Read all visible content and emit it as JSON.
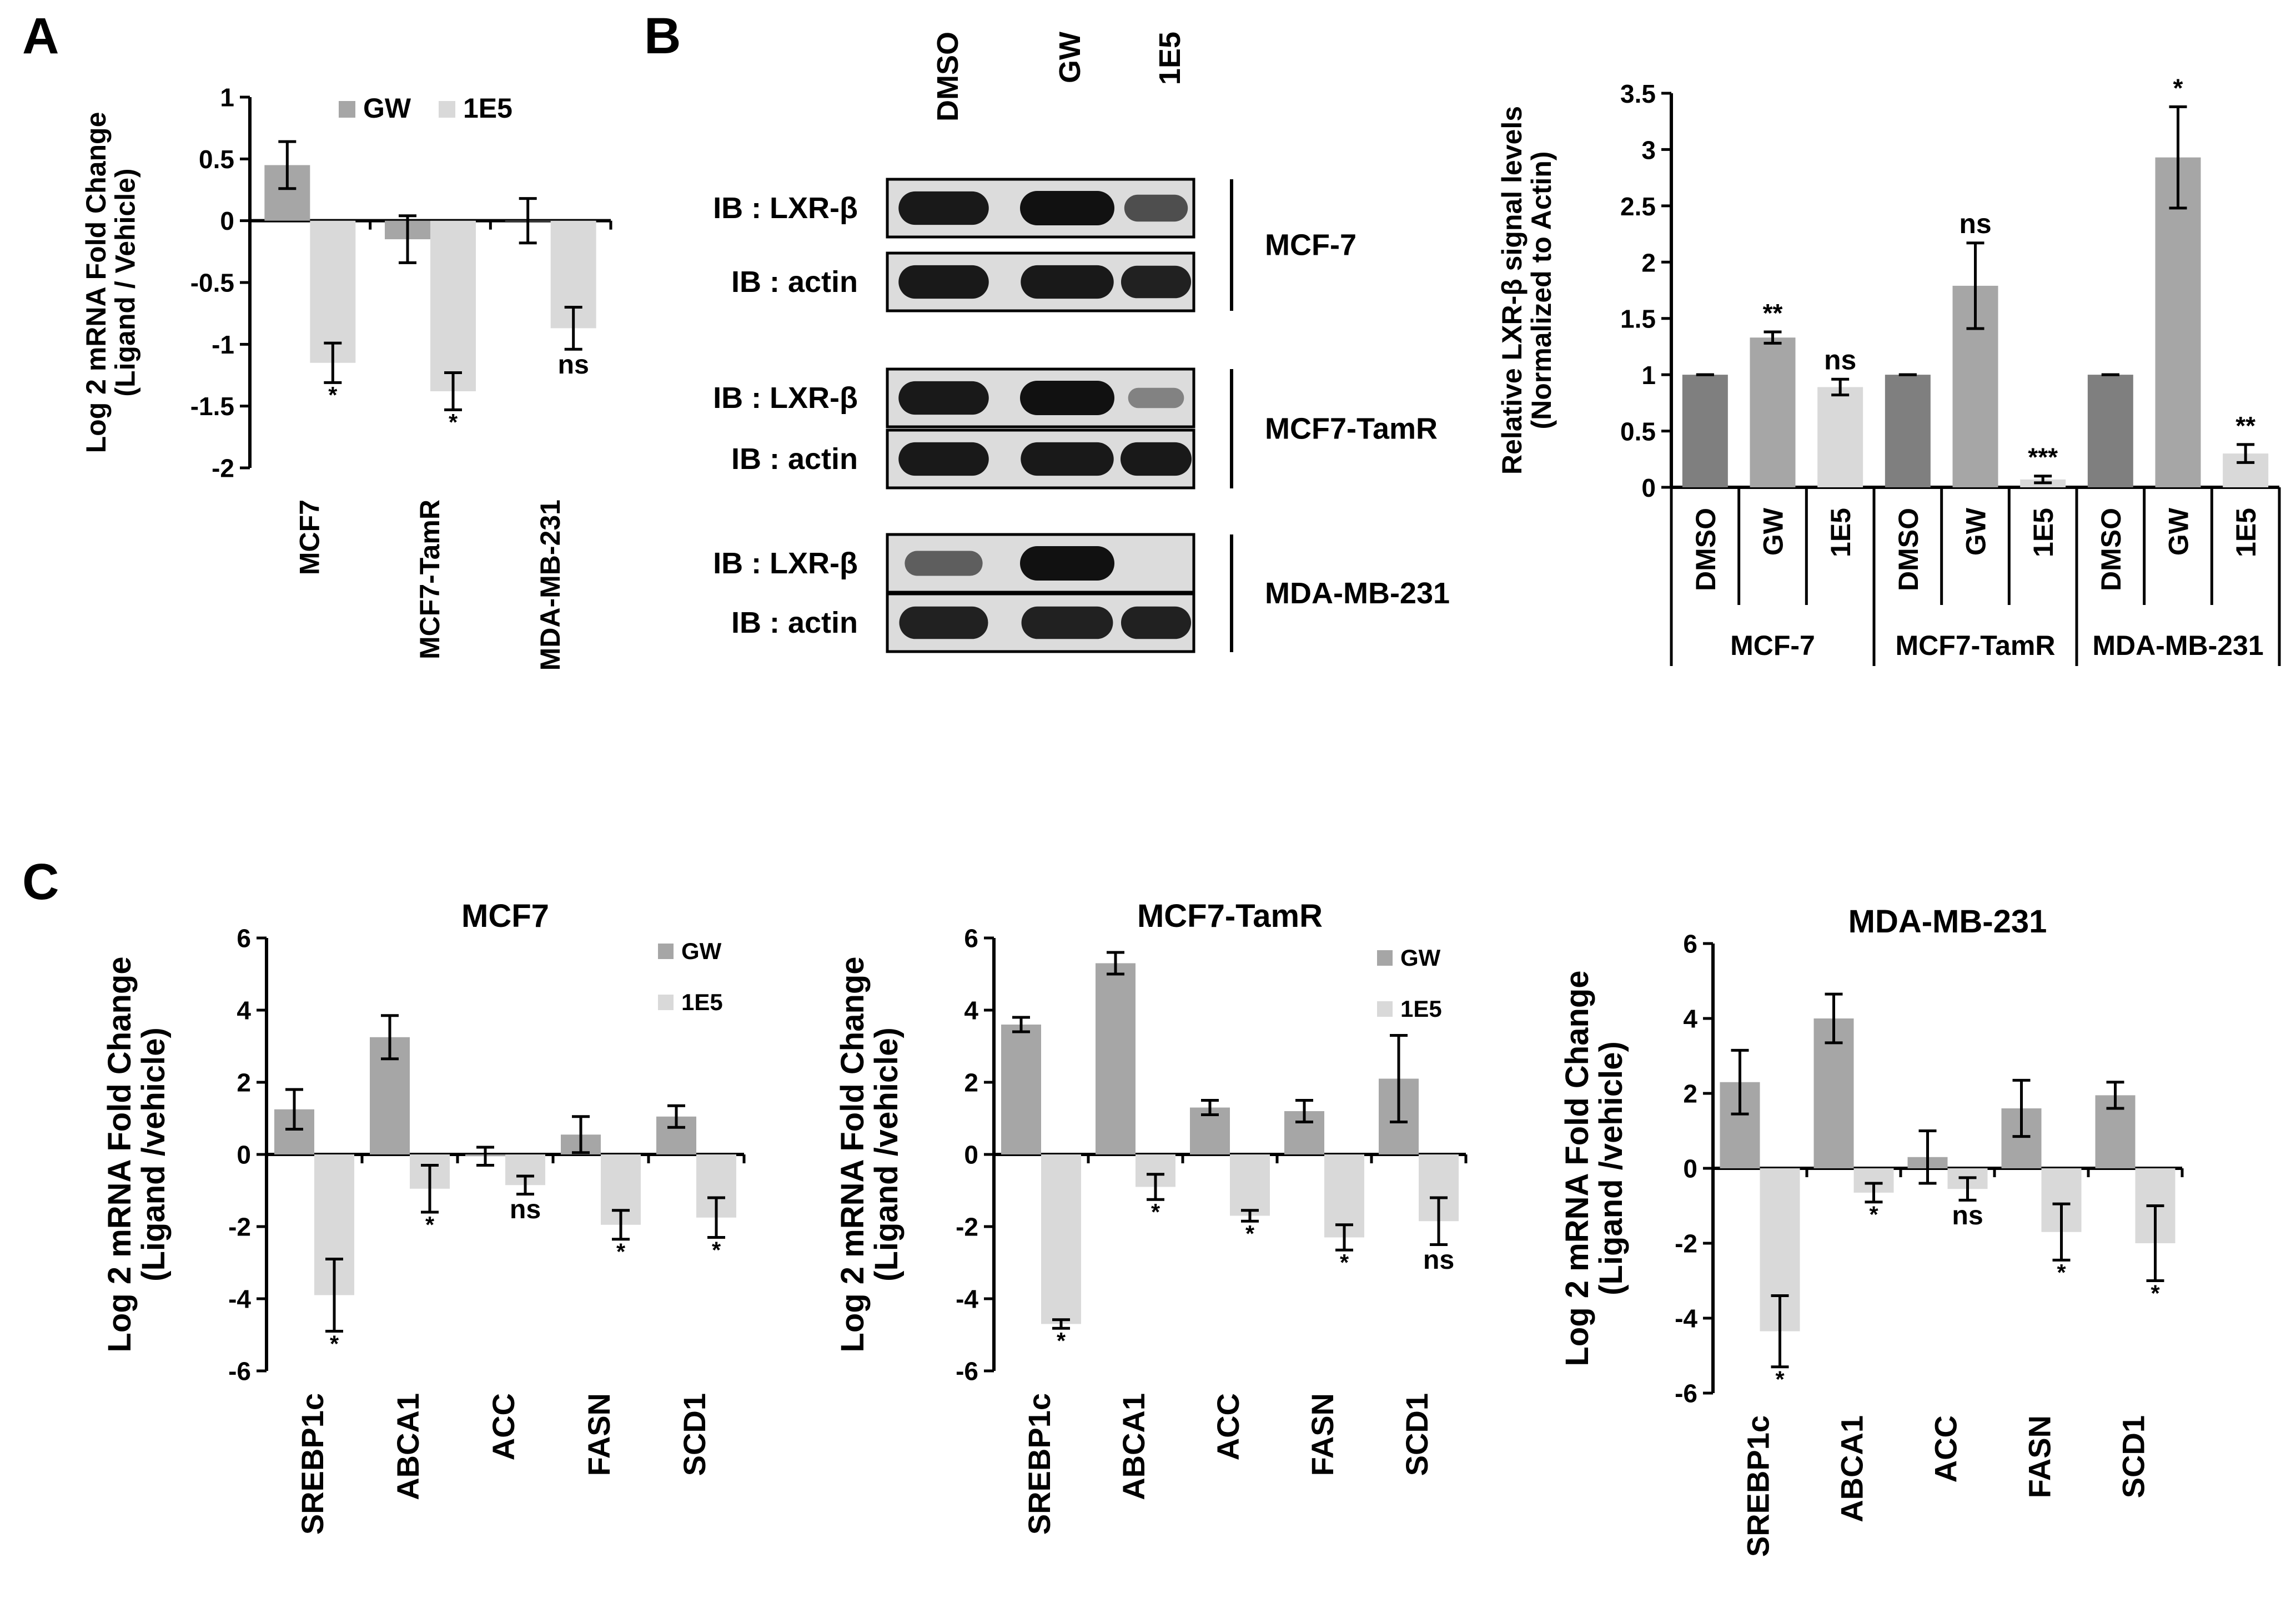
{
  "colors": {
    "gw": "#a6a6a6",
    "e5": "#d9d9d9",
    "dmso": "#7f7f7f",
    "axis": "#000000",
    "blot_bg": "#dcdcdc",
    "band": "#111111"
  },
  "panel_labels": {
    "a": "A",
    "b": "B",
    "c": "C"
  },
  "chart_data": [
    {
      "id": "A",
      "type": "bar",
      "categories": [
        "MCF7",
        "MCF7-TamR",
        "MDA-MB-231"
      ],
      "series": [
        {
          "name": "GW",
          "values": [
            0.45,
            -0.15,
            0.0
          ],
          "errors": [
            0.19,
            0.19,
            0.18
          ],
          "annotations": [
            "",
            "",
            ""
          ]
        },
        {
          "name": "1E5",
          "values": [
            -1.15,
            -1.38,
            -0.87
          ],
          "errors": [
            0.16,
            0.15,
            0.17
          ],
          "annotations": [
            "*",
            "*",
            "ns"
          ]
        }
      ],
      "ylabel": [
        "Log 2 mRNA Fold Change",
        "(Ligand / Vehicle)"
      ],
      "ylim": [
        -2,
        1
      ],
      "yticks": [
        "1",
        "0.5",
        "0",
        "-0.5",
        "-1",
        "-1.5",
        "-2"
      ],
      "legend": [
        "GW",
        "1E5"
      ]
    },
    {
      "id": "B",
      "type": "bar",
      "groups": [
        "MCF-7",
        "MCF7-TamR",
        "MDA-MB-231"
      ],
      "categories": [
        "DMSO",
        "GW",
        "1E5",
        "DMSO",
        "GW",
        "1E5",
        "DMSO",
        "GW",
        "1E5"
      ],
      "values": [
        1.0,
        1.33,
        0.89,
        1.0,
        1.79,
        0.07,
        1.0,
        2.93,
        0.3
      ],
      "errors": [
        0.0,
        0.05,
        0.07,
        0.0,
        0.38,
        0.03,
        0.0,
        0.45,
        0.08
      ],
      "annotations": [
        "",
        "**",
        "ns",
        "",
        "ns",
        "***",
        "",
        "*",
        "**"
      ],
      "ylabel": [
        "Relative LXR-β signal levels",
        "(Normalized to Actin)"
      ],
      "ylim": [
        0,
        3.5
      ],
      "yticks": [
        "3.5",
        "3",
        "2.5",
        "2",
        "1.5",
        "1",
        "0.5",
        "0"
      ]
    },
    {
      "id": "C1",
      "type": "bar",
      "title": "MCF7",
      "categories": [
        "SREBP1c",
        "ABCA1",
        "ACC",
        "FASN",
        "SCD1"
      ],
      "series": [
        {
          "name": "GW",
          "values": [
            1.25,
            3.25,
            -0.05,
            0.55,
            1.05
          ],
          "errors": [
            0.55,
            0.6,
            0.25,
            0.5,
            0.3
          ],
          "annotations": [
            "",
            "",
            "",
            "",
            ""
          ]
        },
        {
          "name": "1E5",
          "values": [
            -3.9,
            -0.95,
            -0.85,
            -1.95,
            -1.75
          ],
          "errors": [
            1.0,
            0.65,
            0.25,
            0.4,
            0.55
          ],
          "annotations": [
            "*",
            "*",
            "ns",
            "*",
            "*"
          ]
        }
      ],
      "ylabel": [
        "Log 2 mRNA Fold Change",
        "(Ligand /vehicle)"
      ],
      "ylim": [
        -6,
        6
      ],
      "yticks": [
        "6",
        "4",
        "2",
        "0",
        "-2",
        "-4",
        "-6"
      ],
      "legend": [
        "GW",
        "1E5"
      ]
    },
    {
      "id": "C2",
      "type": "bar",
      "title": "MCF7-TamR",
      "categories": [
        "SREBP1c",
        "ABCA1",
        "ACC",
        "FASN",
        "SCD1"
      ],
      "series": [
        {
          "name": "GW",
          "values": [
            3.6,
            5.3,
            1.3,
            1.2,
            2.1
          ],
          "errors": [
            0.2,
            0.3,
            0.2,
            0.3,
            1.2
          ],
          "annotations": [
            "",
            "",
            "",
            "",
            ""
          ]
        },
        {
          "name": "1E5",
          "values": [
            -4.7,
            -0.9,
            -1.7,
            -2.3,
            -1.85
          ],
          "errors": [
            0.12,
            0.35,
            0.15,
            0.35,
            0.65
          ],
          "annotations": [
            "*",
            "*",
            "*",
            "*",
            "ns"
          ]
        }
      ],
      "ylabel": [
        "Log 2 mRNA Fold Change",
        "(Ligand /vehicle)"
      ],
      "ylim": [
        -6,
        6
      ],
      "yticks": [
        "6",
        "4",
        "2",
        "0",
        "-2",
        "-4",
        "-6"
      ],
      "legend": [
        "GW",
        "1E5"
      ]
    },
    {
      "id": "C3",
      "type": "bar",
      "title": "MDA-MB-231",
      "categories": [
        "SREBP1c",
        "ABCA1",
        "ACC",
        "FASN",
        "SCD1"
      ],
      "series": [
        {
          "name": "GW",
          "values": [
            2.3,
            4.0,
            0.3,
            1.6,
            1.95
          ],
          "errors": [
            0.85,
            0.65,
            0.7,
            0.75,
            0.35
          ],
          "annotations": [
            "",
            "",
            "",
            "",
            ""
          ]
        },
        {
          "name": "1E5",
          "values": [
            -4.35,
            -0.65,
            -0.55,
            -1.7,
            -2.0
          ],
          "errors": [
            0.95,
            0.25,
            0.3,
            0.75,
            1.0
          ],
          "annotations": [
            "*",
            "*",
            "ns",
            "*",
            "*"
          ]
        }
      ],
      "ylabel": [
        "Log 2 mRNA Fold Change",
        "(Ligand /vehicle)"
      ],
      "ylim": [
        -6,
        6
      ],
      "yticks": [
        "6",
        "4",
        "2",
        "0",
        "-2",
        "-4",
        "-6"
      ]
    }
  ],
  "blot": {
    "lanes": [
      "DMSO",
      "GW",
      "1E5"
    ],
    "rows": [
      {
        "label": "IB : LXR-β",
        "intensity": [
          0.95,
          1.0,
          0.6
        ]
      },
      {
        "label": "IB : actin",
        "intensity": [
          0.95,
          0.95,
          0.9
        ]
      },
      {
        "label": "IB : LXR-β",
        "intensity": [
          0.95,
          1.0,
          0.25
        ]
      },
      {
        "label": "IB : actin",
        "intensity": [
          0.95,
          0.95,
          0.95
        ]
      },
      {
        "label": "IB : LXR-β",
        "intensity": [
          0.5,
          1.0,
          0.0
        ]
      },
      {
        "label": "IB : actin",
        "intensity": [
          0.9,
          0.9,
          0.9
        ]
      }
    ],
    "cell_lines": [
      "MCF-7",
      "MCF7-TamR",
      "MDA-MB-231"
    ]
  }
}
